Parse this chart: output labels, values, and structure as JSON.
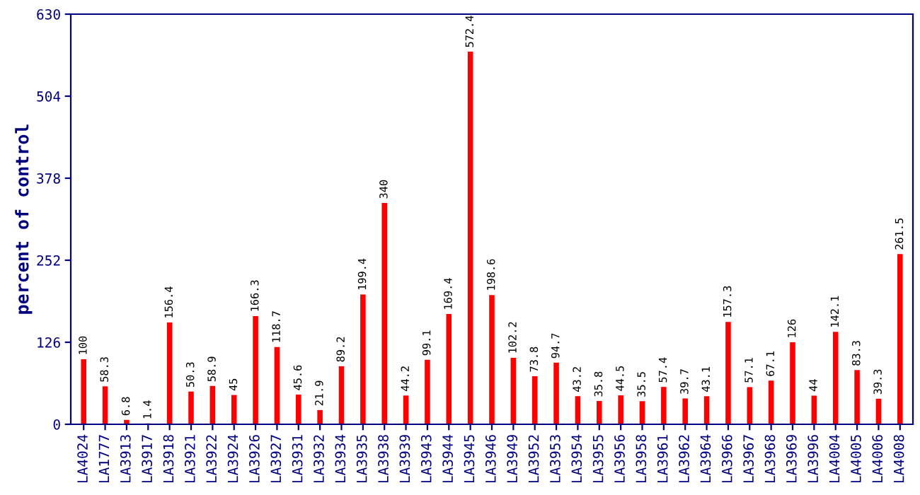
{
  "chart_data": {
    "type": "bar",
    "ylabel": "percent of control",
    "categories": [
      "LA4024",
      "LA1777",
      "LA3913",
      "LA3917",
      "LA3918",
      "LA3921",
      "LA3922",
      "LA3924",
      "LA3926",
      "LA3927",
      "LA3931",
      "LA3932",
      "LA3934",
      "LA3935",
      "LA3938",
      "LA3939",
      "LA3943",
      "LA3944",
      "LA3945",
      "LA3946",
      "LA3949",
      "LA3952",
      "LA3953",
      "LA3954",
      "LA3955",
      "LA3956",
      "LA3958",
      "LA3961",
      "LA3962",
      "LA3964",
      "LA3966",
      "LA3967",
      "LA3968",
      "LA3969",
      "LA3996",
      "LA4004",
      "LA4005",
      "LA4006",
      "LA4008"
    ],
    "values": [
      100,
      58.3,
      6.8,
      1.4,
      156.4,
      50.3,
      58.9,
      45,
      166.3,
      118.7,
      45.6,
      21.9,
      89.2,
      199.4,
      340,
      44.2,
      99.1,
      169.4,
      572.4,
      198.6,
      102.2,
      73.8,
      94.7,
      43.2,
      35.8,
      44.5,
      35.5,
      57.4,
      39.7,
      43.1,
      157.3,
      57.1,
      67.1,
      126,
      44,
      142.1,
      83.3,
      39.3,
      261.5
    ],
    "color": "#ff0000",
    "ylim": [
      0,
      630
    ],
    "yticks": [
      0,
      126,
      252,
      378,
      504,
      630
    ],
    "data_labels": true,
    "grid": false
  }
}
